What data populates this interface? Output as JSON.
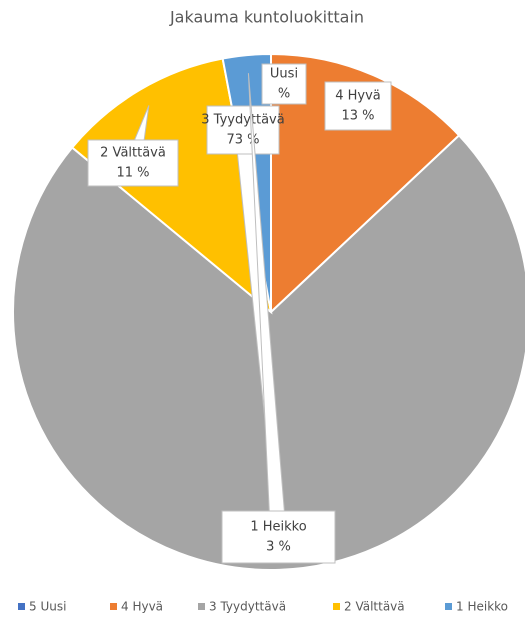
{
  "chart_data": {
    "type": "pie",
    "title": "Jakauma kuntoluokittain",
    "categories": [
      "5 Uusi",
      "4 Hyvä",
      "3 Tyydyttävä",
      "2 Välttävä",
      "1 Heikko"
    ],
    "values": [
      0,
      13,
      73,
      11,
      3
    ],
    "value_labels": [
      "%",
      "13 %",
      "73 %",
      "11 %",
      "3 %"
    ],
    "data_label_names": [
      "Uusi",
      "4 Hyvä",
      "3 Tyydyttävä",
      "2 Välttävä",
      "1 Heikko"
    ],
    "colors": [
      "#4472c4",
      "#ed7d31",
      "#a5a5a5",
      "#ffc000",
      "#5b9bd5"
    ],
    "legend": "bottom"
  }
}
